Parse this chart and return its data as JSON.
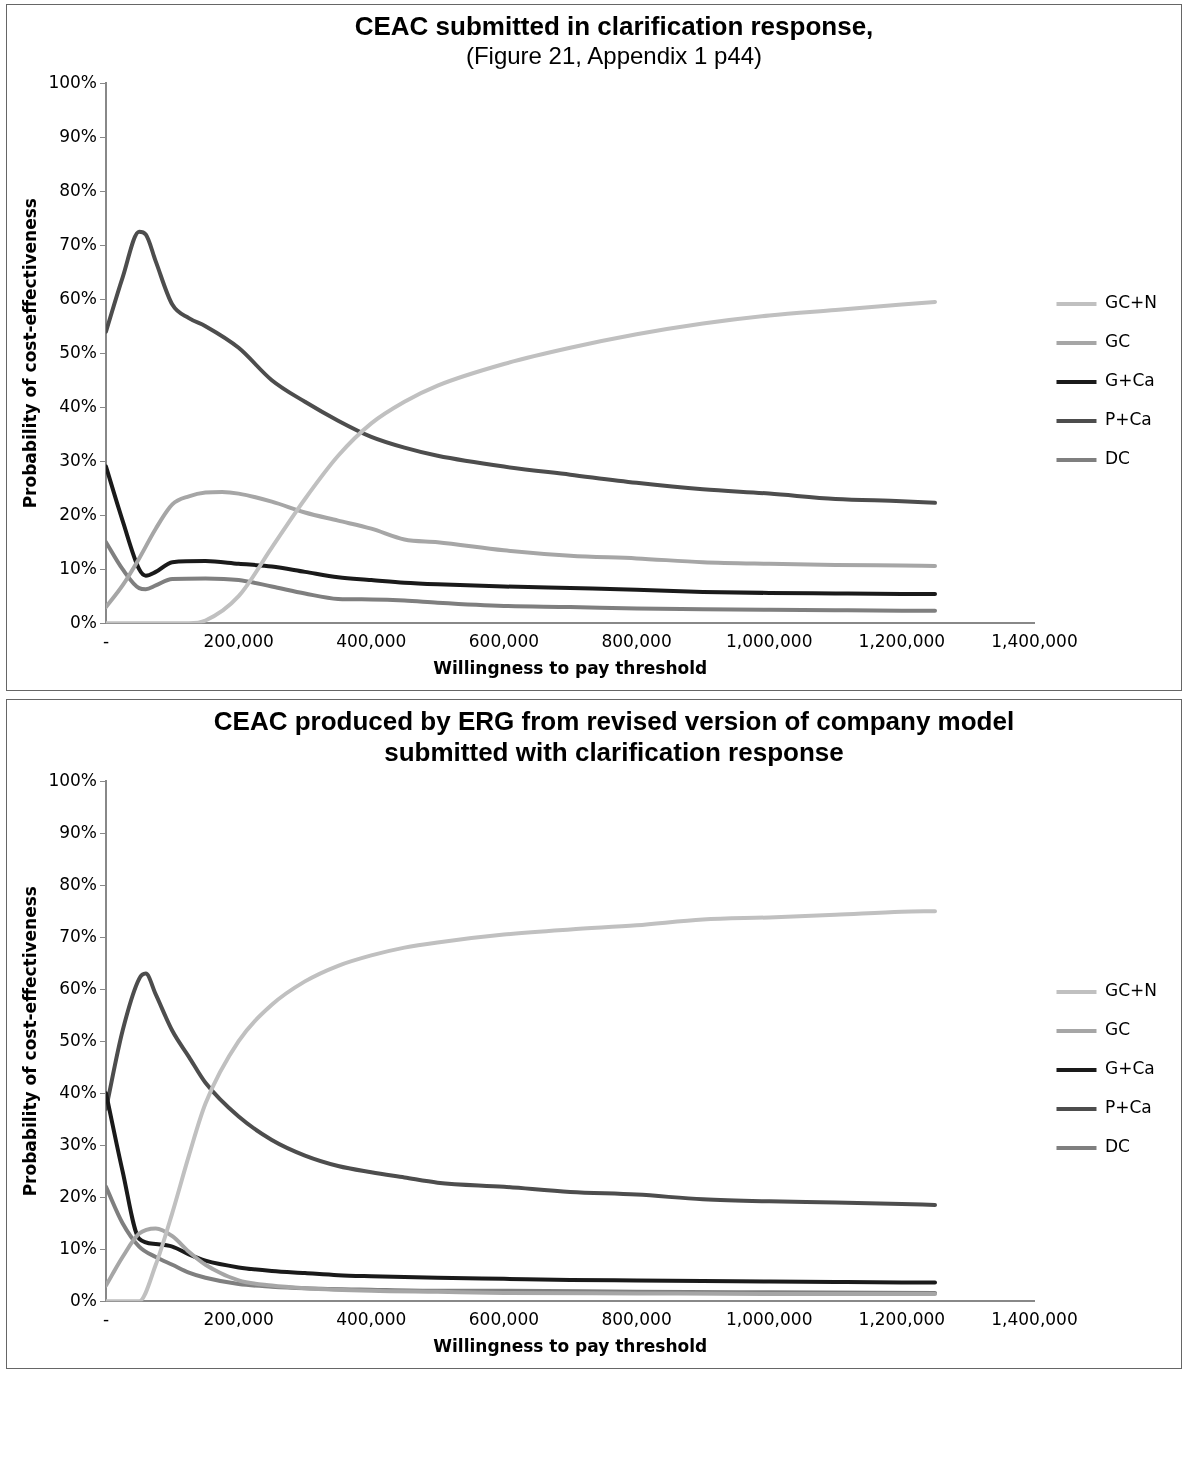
{
  "chart_data": [
    {
      "type": "line",
      "title": "CEAC submitted in clarification response,",
      "subtitle": "(Figure 21, Appendix 1 p44)",
      "xlabel": "Willingness to pay threshold",
      "ylabel": "Probability of cost-effectiveness",
      "xlim": [
        0,
        1400000
      ],
      "xticks": [
        {
          "value": 0,
          "label": "-"
        },
        {
          "value": 200000,
          "label": "200,000"
        },
        {
          "value": 400000,
          "label": "400,000"
        },
        {
          "value": 600000,
          "label": "600,000"
        },
        {
          "value": 800000,
          "label": "800,000"
        },
        {
          "value": 1000000,
          "label": "1,000,000"
        },
        {
          "value": 1200000,
          "label": "1,200,000"
        },
        {
          "value": 1400000,
          "label": "1,400,000"
        }
      ],
      "ylim": [
        0,
        100
      ],
      "yticks": [
        {
          "value": 0,
          "label": "0%"
        },
        {
          "value": 10,
          "label": "10%"
        },
        {
          "value": 20,
          "label": "20%"
        },
        {
          "value": 30,
          "label": "30%"
        },
        {
          "value": 40,
          "label": "40%"
        },
        {
          "value": 50,
          "label": "50%"
        },
        {
          "value": 60,
          "label": "60%"
        },
        {
          "value": 70,
          "label": "70%"
        },
        {
          "value": 80,
          "label": "80%"
        },
        {
          "value": 90,
          "label": "90%"
        },
        {
          "value": 100,
          "label": "100%"
        }
      ],
      "grid": false,
      "legend": "right",
      "marker": "none",
      "line_style": "solid",
      "series": [
        {
          "name": "GC+N",
          "color": "#c0c0c0",
          "x": [
            0,
            50000,
            100000,
            125000,
            150000,
            200000,
            250000,
            300000,
            350000,
            400000,
            450000,
            500000,
            600000,
            700000,
            800000,
            900000,
            1000000,
            1100000,
            1200000,
            1250000
          ],
          "values": [
            0,
            0,
            0,
            0,
            0.5,
            5,
            14,
            23,
            31,
            37,
            41,
            44,
            48,
            51,
            53.5,
            55.5,
            57,
            58,
            59,
            59.5
          ]
        },
        {
          "name": "GC",
          "color": "#a6a6a6",
          "x": [
            0,
            25000,
            50000,
            75000,
            100000,
            125000,
            150000,
            175000,
            200000,
            250000,
            300000,
            350000,
            400000,
            450000,
            500000,
            600000,
            700000,
            800000,
            900000,
            1000000,
            1100000,
            1200000,
            1250000
          ],
          "values": [
            3,
            7,
            12,
            17.5,
            22,
            23.5,
            24.2,
            24.3,
            24,
            22.5,
            20.5,
            19,
            17.5,
            15.5,
            15,
            13.5,
            12.5,
            12,
            11.3,
            11,
            10.8,
            10.7,
            10.6
          ]
        },
        {
          "name": "G+Ca",
          "color": "#1a1a1a",
          "x": [
            0,
            25000,
            50000,
            60000,
            75000,
            100000,
            150000,
            200000,
            250000,
            300000,
            350000,
            400000,
            450000,
            500000,
            600000,
            700000,
            800000,
            900000,
            1000000,
            1100000,
            1200000,
            1250000
          ],
          "values": [
            29,
            19,
            10,
            8.8,
            9.5,
            11.3,
            11.5,
            11,
            10.5,
            9.5,
            8.5,
            8,
            7.5,
            7.2,
            6.8,
            6.5,
            6.2,
            5.8,
            5.6,
            5.5,
            5.4,
            5.4
          ]
        },
        {
          "name": "P+Ca",
          "color": "#4d4d4d",
          "x": [
            0,
            25000,
            50000,
            60000,
            75000,
            100000,
            125000,
            150000,
            200000,
            250000,
            300000,
            350000,
            400000,
            450000,
            500000,
            600000,
            700000,
            800000,
            900000,
            1000000,
            1100000,
            1200000,
            1250000
          ],
          "values": [
            54,
            64,
            72.5,
            72,
            67,
            59,
            56.5,
            55,
            51,
            45,
            41,
            37.5,
            34.5,
            32.5,
            31,
            29,
            27.5,
            26,
            24.8,
            24,
            23,
            22.6,
            22.3
          ]
        },
        {
          "name": "DC",
          "color": "#7f7f7f",
          "x": [
            0,
            25000,
            50000,
            60000,
            75000,
            100000,
            150000,
            200000,
            250000,
            300000,
            350000,
            400000,
            450000,
            500000,
            600000,
            700000,
            800000,
            900000,
            1000000,
            1100000,
            1200000,
            1250000
          ],
          "values": [
            15,
            10,
            6.5,
            6.3,
            7,
            8.2,
            8.3,
            8,
            6.8,
            5.5,
            4.5,
            4.4,
            4.2,
            3.8,
            3.2,
            3,
            2.7,
            2.6,
            2.5,
            2.4,
            2.3,
            2.3
          ]
        }
      ]
    },
    {
      "type": "line",
      "title": "CEAC produced by ERG from revised version of company model submitted with clarification response",
      "xlabel": "Willingness to pay threshold",
      "ylabel": "Probability of cost-effectiveness",
      "xlim": [
        0,
        1400000
      ],
      "xticks": [
        {
          "value": 0,
          "label": "-"
        },
        {
          "value": 200000,
          "label": "200,000"
        },
        {
          "value": 400000,
          "label": "400,000"
        },
        {
          "value": 600000,
          "label": "600,000"
        },
        {
          "value": 800000,
          "label": "800,000"
        },
        {
          "value": 1000000,
          "label": "1,000,000"
        },
        {
          "value": 1200000,
          "label": "1,200,000"
        },
        {
          "value": 1400000,
          "label": "1,400,000"
        }
      ],
      "ylim": [
        0,
        100
      ],
      "yticks": [
        {
          "value": 0,
          "label": "0%"
        },
        {
          "value": 10,
          "label": "10%"
        },
        {
          "value": 20,
          "label": "20%"
        },
        {
          "value": 30,
          "label": "30%"
        },
        {
          "value": 40,
          "label": "40%"
        },
        {
          "value": 50,
          "label": "50%"
        },
        {
          "value": 60,
          "label": "60%"
        },
        {
          "value": 70,
          "label": "70%"
        },
        {
          "value": 80,
          "label": "80%"
        },
        {
          "value": 90,
          "label": "90%"
        },
        {
          "value": 100,
          "label": "100%"
        }
      ],
      "grid": false,
      "legend": "right",
      "marker": "none",
      "line_style": "solid",
      "series": [
        {
          "name": "GC+N",
          "color": "#c0c0c0",
          "x": [
            0,
            50000,
            75000,
            100000,
            125000,
            150000,
            200000,
            250000,
            300000,
            350000,
            400000,
            450000,
            500000,
            600000,
            700000,
            800000,
            900000,
            1000000,
            1100000,
            1200000,
            1250000
          ],
          "values": [
            0,
            0,
            7,
            17,
            28,
            38,
            50,
            57,
            61.5,
            64.5,
            66.5,
            68,
            69,
            70.5,
            71.5,
            72.3,
            73.4,
            73.8,
            74.3,
            74.9,
            75
          ]
        },
        {
          "name": "GC",
          "color": "#a6a6a6",
          "x": [
            0,
            25000,
            50000,
            75000,
            100000,
            125000,
            150000,
            200000,
            250000,
            300000,
            400000,
            500000,
            600000,
            800000,
            1000000,
            1250000
          ],
          "values": [
            3,
            8.5,
            13,
            14,
            12.5,
            9.5,
            7,
            4,
            3,
            2.5,
            2,
            1.8,
            1.6,
            1.5,
            1.4,
            1.4
          ]
        },
        {
          "name": "G+Ca",
          "color": "#1a1a1a",
          "x": [
            0,
            25000,
            50000,
            75000,
            100000,
            125000,
            150000,
            200000,
            250000,
            300000,
            350000,
            400000,
            500000,
            600000,
            700000,
            800000,
            900000,
            1000000,
            1100000,
            1200000,
            1250000
          ],
          "values": [
            40,
            25,
            12,
            11,
            10.5,
            9,
            7.8,
            6.5,
            5.8,
            5.4,
            5,
            4.8,
            4.5,
            4.3,
            4.1,
            4,
            3.9,
            3.8,
            3.7,
            3.6,
            3.6
          ]
        },
        {
          "name": "P+Ca",
          "color": "#4d4d4d",
          "x": [
            0,
            25000,
            50000,
            60000,
            75000,
            100000,
            125000,
            150000,
            200000,
            250000,
            300000,
            350000,
            400000,
            450000,
            500000,
            600000,
            700000,
            800000,
            900000,
            1000000,
            1100000,
            1200000,
            1250000
          ],
          "values": [
            37,
            52,
            62,
            63,
            59,
            52,
            47,
            42,
            35.5,
            31,
            28,
            26,
            24.8,
            23.8,
            22.8,
            22,
            21,
            20.5,
            19.6,
            19.2,
            19,
            18.7,
            18.5
          ]
        },
        {
          "name": "DC",
          "color": "#7f7f7f",
          "x": [
            0,
            25000,
            50000,
            75000,
            100000,
            125000,
            150000,
            200000,
            250000,
            300000,
            400000,
            500000,
            600000,
            800000,
            1000000,
            1250000
          ],
          "values": [
            22,
            15,
            10.5,
            8.5,
            7,
            5.5,
            4.5,
            3.3,
            2.8,
            2.5,
            2.2,
            2,
            2,
            1.8,
            1.7,
            1.6
          ]
        }
      ]
    }
  ]
}
